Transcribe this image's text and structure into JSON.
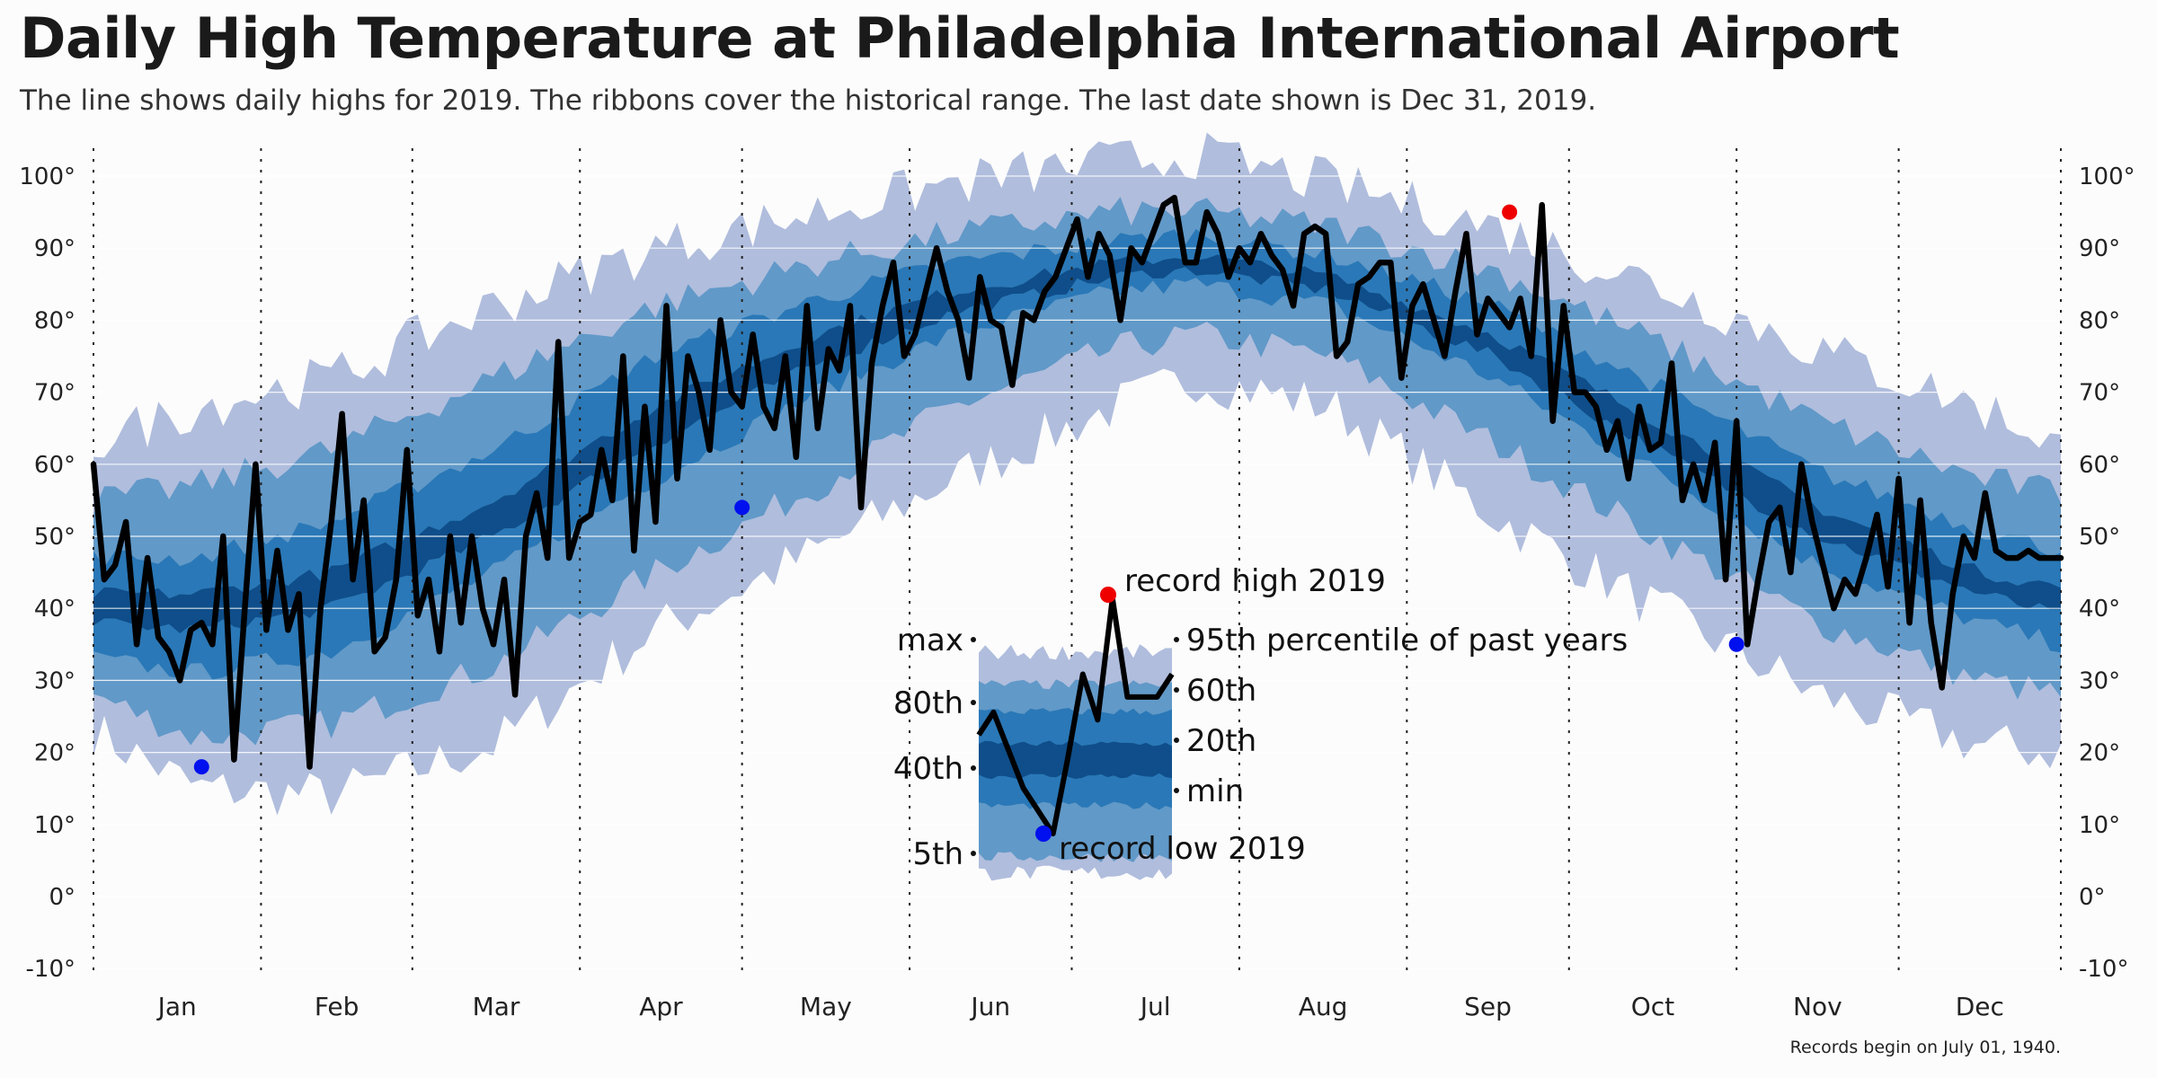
{
  "title": "Daily High Temperature at Philadelphia International Airport",
  "subtitle": "The line shows daily highs for 2019. The ribbons cover the historical range. The last date shown is Dec 31, 2019.",
  "caption": "Records begin on July 01, 1940.",
  "colors": {
    "ribbon_min_max": "#b0bddd",
    "ribbon_5_95": "#6199c8",
    "ribbon_20_80": "#2a78b7",
    "ribbon_40_60": "#0f4e8a",
    "line_2019": "#000000",
    "record_high": "#ee0000",
    "record_low": "#0010ee",
    "gridline": "#ffffff",
    "month_divider": "#222222",
    "background": "#fcfcfc"
  },
  "legend": {
    "label_record_high": "record high 2019",
    "label_record_low": "record low 2019",
    "label_max": "max",
    "label_80th": "80th",
    "label_40th": "40th",
    "label_5th": "5th",
    "label_95th": "95th percentile of past years",
    "label_60th": "60th",
    "label_20th": "20th",
    "label_min": "min",
    "line_values": [
      18,
      21,
      16,
      11,
      8,
      5,
      15,
      26,
      20,
      36,
      23,
      23,
      23,
      26
    ]
  },
  "chart_data": {
    "type": "area",
    "title": "Daily High Temperature at Philadelphia International Airport",
    "subtitle": "The line shows daily highs for 2019. The ribbons cover the historical range. The last date shown is Dec 31, 2019.",
    "caption": "Records begin on July 01, 1940.",
    "x_axis": {
      "labels": [
        "Jan",
        "Feb",
        "Mar",
        "Apr",
        "May",
        "Jun",
        "Jul",
        "Aug",
        "Sep",
        "Oct",
        "Nov",
        "Dec"
      ],
      "month_lengths": [
        31,
        28,
        31,
        30,
        31,
        30,
        31,
        31,
        30,
        31,
        30,
        31
      ]
    },
    "y_axis": {
      "range": [
        -10,
        100
      ],
      "ticks": [
        "-10°",
        "0°",
        "10°",
        "20°",
        "30°",
        "40°",
        "50°",
        "60°",
        "70°",
        "80°",
        "90°",
        "100°"
      ]
    },
    "historical_bands": {
      "description_x": "day of year",
      "knots_day": [
        1,
        20,
        45,
        75,
        105,
        135,
        160,
        190,
        205,
        230,
        260,
        290,
        320,
        350,
        365
      ],
      "min": [
        23,
        15,
        14,
        21,
        37,
        48,
        58,
        68,
        72,
        68,
        53,
        40,
        28,
        21,
        20
      ],
      "p5": [
        28,
        22,
        24,
        32,
        45,
        57,
        68,
        76,
        78,
        75,
        63,
        50,
        38,
        30,
        28
      ],
      "p20": [
        33,
        31,
        34,
        45,
        58,
        70,
        78,
        84,
        85,
        82,
        72,
        59,
        46,
        38,
        35
      ],
      "p40": [
        38,
        37,
        40,
        50,
        63,
        74,
        81,
        86,
        87,
        84,
        75,
        62,
        50,
        42,
        39
      ],
      "p60": [
        42,
        42,
        45,
        55,
        68,
        78,
        84,
        88,
        89,
        86,
        78,
        66,
        54,
        45,
        43
      ],
      "p80": [
        47,
        47,
        52,
        62,
        75,
        83,
        88,
        91,
        92,
        89,
        82,
        71,
        59,
        51,
        48
      ],
      "p95": [
        55,
        57,
        62,
        72,
        82,
        88,
        92,
        95,
        95,
        93,
        87,
        77,
        66,
        58,
        56
      ],
      "max": [
        63,
        68,
        72,
        82,
        90,
        95,
        99,
        102,
        103,
        99,
        93,
        85,
        76,
        68,
        63
      ]
    },
    "series": [
      {
        "name": "2019",
        "x": [
          1,
          3,
          5,
          7,
          9,
          11,
          13,
          15,
          17,
          19,
          21,
          23,
          25,
          27,
          29,
          31,
          33,
          35,
          37,
          39,
          41,
          43,
          45,
          47,
          49,
          51,
          53,
          55,
          57,
          59,
          61,
          63,
          65,
          67,
          69,
          71,
          73,
          75,
          77,
          79,
          81,
          83,
          85,
          87,
          89,
          91,
          93,
          95,
          97,
          99,
          101,
          103,
          105,
          107,
          109,
          111,
          113,
          115,
          117,
          119,
          121,
          123,
          125,
          127,
          129,
          131,
          133,
          135,
          137,
          139,
          141,
          143,
          145,
          147,
          149,
          151,
          153,
          155,
          157,
          159,
          161,
          163,
          165,
          167,
          169,
          171,
          173,
          175,
          177,
          179,
          181,
          183,
          185,
          187,
          189,
          191,
          193,
          195,
          197,
          199,
          201,
          203,
          205,
          207,
          209,
          211,
          213,
          215,
          217,
          219,
          221,
          223,
          225,
          227,
          229,
          231,
          233,
          235,
          237,
          239,
          241,
          243,
          245,
          247,
          249,
          251,
          253,
          255,
          257,
          259,
          261,
          263,
          265,
          267,
          269,
          271,
          273,
          275,
          277,
          279,
          281,
          283,
          285,
          287,
          289,
          291,
          293,
          295,
          297,
          299,
          301,
          303,
          305,
          307,
          309,
          311,
          313,
          315,
          317,
          319,
          321,
          323,
          325,
          327,
          329,
          331,
          333,
          335,
          337,
          339,
          341,
          343,
          345,
          347,
          349,
          351,
          353,
          355,
          357,
          359,
          361,
          363,
          365
        ],
        "values": [
          60,
          44,
          46,
          52,
          35,
          47,
          36,
          34,
          30,
          37,
          38,
          35,
          50,
          19,
          40,
          60,
          37,
          48,
          37,
          42,
          18,
          40,
          52,
          67,
          44,
          55,
          34,
          36,
          44,
          62,
          39,
          44,
          34,
          50,
          38,
          50,
          40,
          35,
          44,
          28,
          50,
          56,
          47,
          77,
          47,
          52,
          53,
          62,
          55,
          75,
          48,
          68,
          52,
          82,
          58,
          75,
          70,
          62,
          80,
          70,
          68,
          78,
          68,
          65,
          75,
          61,
          82,
          65,
          76,
          73,
          82,
          54,
          74,
          82,
          88,
          75,
          78,
          84,
          90,
          84,
          80,
          72,
          86,
          80,
          79,
          71,
          81,
          80,
          84,
          86,
          90,
          94,
          86,
          92,
          89,
          80,
          90,
          88,
          92,
          96,
          97,
          88,
          88,
          95,
          92,
          86,
          90,
          88,
          92,
          89,
          87,
          82,
          92,
          93,
          92,
          75,
          77,
          85,
          86,
          88,
          88,
          72,
          82,
          85,
          80,
          75,
          84,
          92,
          78,
          83,
          81,
          79,
          83,
          75,
          96,
          66,
          82,
          70,
          70,
          68,
          62,
          66,
          58,
          68,
          62,
          63,
          74,
          55,
          60,
          55,
          63,
          44,
          66,
          35,
          44,
          52,
          54,
          45,
          60,
          52,
          46,
          40,
          44,
          42,
          47,
          53,
          43,
          58,
          38,
          55,
          38,
          29,
          42,
          50,
          47,
          56,
          48,
          47,
          47,
          48,
          47,
          47,
          47
        ]
      }
    ],
    "records_2019": {
      "record_highs": [
        {
          "date": "Sep 20",
          "value": 95
        }
      ],
      "record_lows": [
        {
          "date": "Jan 21",
          "value": 18
        },
        {
          "date": "May 1",
          "value": 54
        },
        {
          "date": "Nov 1",
          "value": 35
        }
      ]
    },
    "grid": true
  }
}
